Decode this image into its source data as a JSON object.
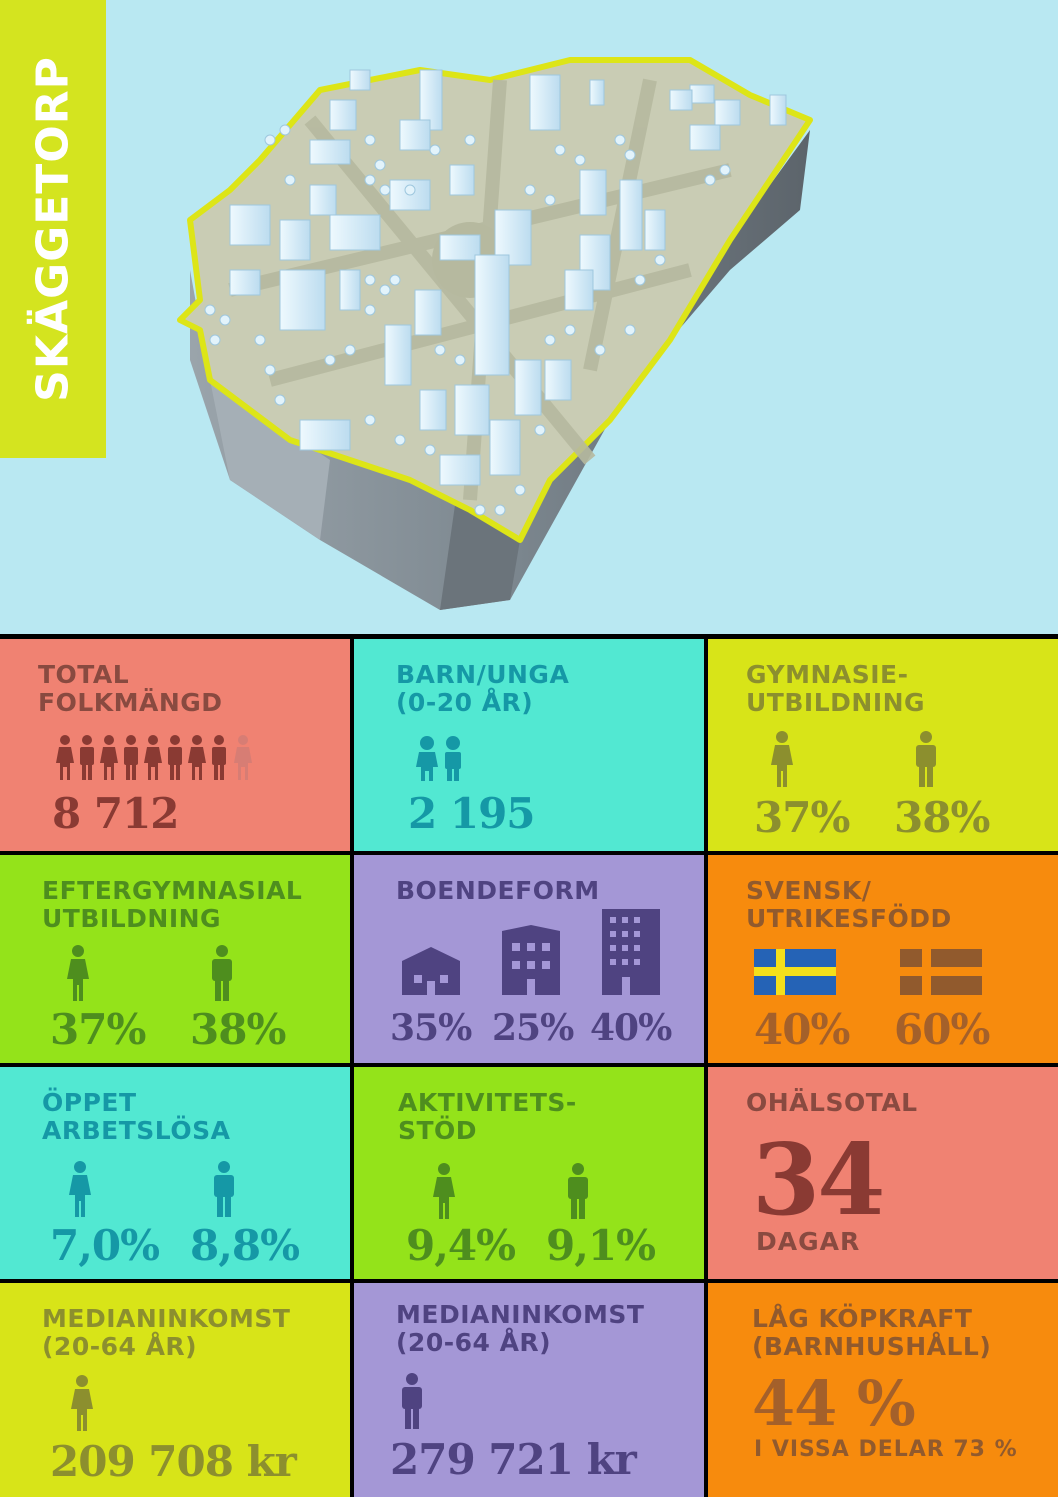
{
  "title": "SKÄGGETORP",
  "colors": {
    "sky": "#b9e8f2",
    "lime": "#d4e41f",
    "salmon": "#f08272",
    "turquoise": "#52e8d2",
    "yellow": "#d8e418",
    "green": "#94e31a",
    "lavender": "#a497d6",
    "orange": "#f78b0d"
  },
  "cards": {
    "population": {
      "label_1": "TOTAL",
      "label_2": "FOLKMÄNGD",
      "value": "8 712",
      "icon": "people-row-icon"
    },
    "youth": {
      "label_1": "BARN/UNGA",
      "label_2": "(0-20 ÅR)",
      "value": "2 195",
      "icon": "children-icon"
    },
    "gymnasium": {
      "label_1": "GYMNASIE-",
      "label_2": "UTBILDNING",
      "female": "37%",
      "male": "38%"
    },
    "higher_ed": {
      "label_1": "EFTERGYMNASIAL",
      "label_2": "UTBILDNING",
      "female": "37%",
      "male": "38%"
    },
    "housing": {
      "label_1": "BOENDEFORM",
      "house": "35%",
      "townhouse": "25%",
      "apartment": "40%"
    },
    "origin": {
      "label_1": "SVENSK/",
      "label_2": "UTRIKESFÖDD",
      "swedish": "40%",
      "foreign": "60%"
    },
    "unemployed": {
      "label_1": "ÖPPET",
      "label_2": "ARBETSLÖSA",
      "female": "7,0%",
      "male": "8,8%"
    },
    "activity": {
      "label_1": "AKTIVITETS-",
      "label_2": "STÖD",
      "female": "9,4%",
      "male": "9,1%"
    },
    "sickness": {
      "label_1": "OHÄLSOTAL",
      "value": "34",
      "unit": "DAGAR"
    },
    "income_f": {
      "label_1": "MEDIANINKOMST",
      "label_2": "(20-64 ÅR)",
      "value": "209 708 kr"
    },
    "income_m": {
      "label_1": "MEDIANINKOMST",
      "label_2": "(20-64 ÅR)",
      "value": "279 721 kr"
    },
    "purchasing": {
      "label_1": "LÅG KÖPKRAFT",
      "label_2": "(BARNHUSHÅLL)",
      "value": "44 %",
      "note": "I VISSA DELAR 73 %"
    }
  }
}
